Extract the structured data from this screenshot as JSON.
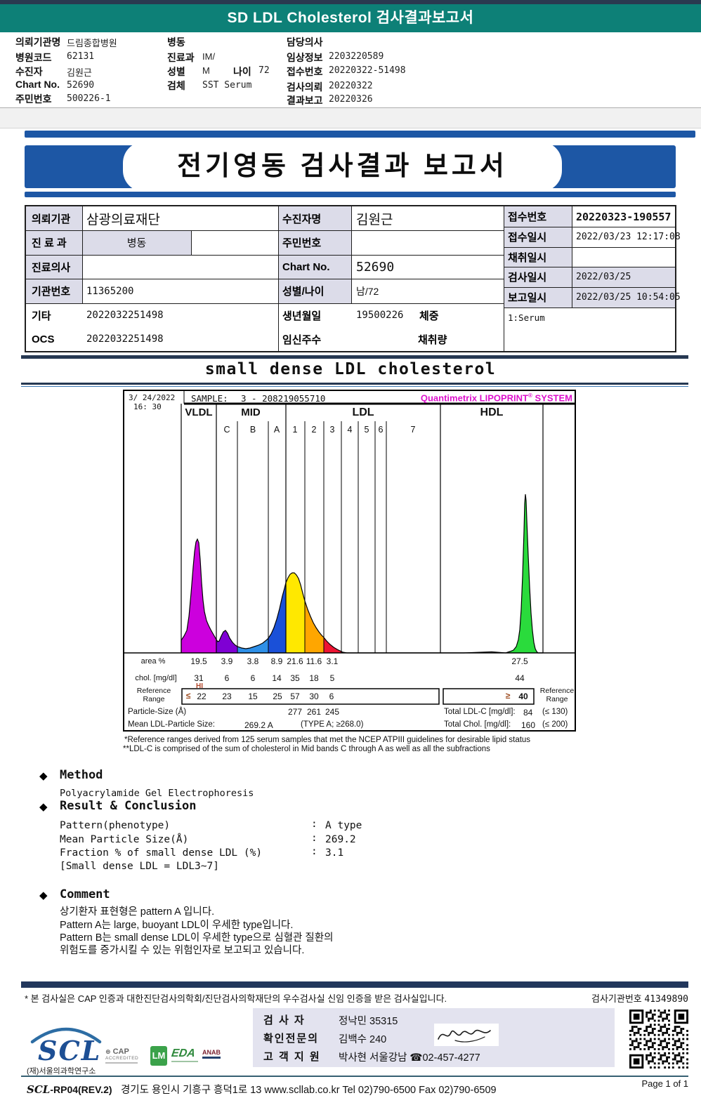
{
  "page": {
    "header_title": "SD LDL Cholesterol 검사결과보고서",
    "report_title": "전기영동 검사결과 보고서",
    "section_title": "small dense LDL cholesterol",
    "page_number": "Page 1 of 1"
  },
  "patient_info": {
    "col1": [
      {
        "label": "의뢰기관명",
        "value": "드림종합병원"
      },
      {
        "label": "병원코드",
        "value": "62131"
      },
      {
        "label": "수진자",
        "value": "김원근"
      },
      {
        "label": "Chart No.",
        "value": "52690"
      },
      {
        "label": "주민번호",
        "value": "500226-1"
      }
    ],
    "col2": [
      {
        "label": "병동",
        "value": ""
      },
      {
        "label": "진료과",
        "value": "IM/"
      },
      {
        "label": "성별",
        "value": "M"
      },
      {
        "label": "나이",
        "value": "72"
      },
      {
        "label": "검체",
        "value": "SST Serum"
      }
    ],
    "col3": [
      {
        "label": "담당의사",
        "value": ""
      },
      {
        "label": "임상정보",
        "value": "2203220589"
      },
      {
        "label": "접수번호",
        "value": "20220322-51498"
      },
      {
        "label": "검사의뢰",
        "value": "20220322"
      },
      {
        "label": "결과보고",
        "value": "20220326"
      }
    ]
  },
  "info_table": {
    "left": [
      {
        "label": "의뢰기관",
        "value": "삼광의료재단"
      },
      {
        "label": "진 료 과",
        "value": "병동"
      },
      {
        "label": "진료의사",
        "value": ""
      },
      {
        "label": "기관번호",
        "value": "11365200"
      },
      {
        "label": "기타",
        "value": "2022032251498"
      },
      {
        "label": "OCS",
        "value": "2022032251498"
      }
    ],
    "middle": [
      {
        "label": "수진자명",
        "value": "김원근"
      },
      {
        "label": "주민번호",
        "value": ""
      },
      {
        "label": "Chart No.",
        "value": "52690"
      },
      {
        "label": "성별/나이",
        "value": "남/72"
      },
      {
        "label": "생년월일",
        "value": "19500226",
        "extra_label": "체중"
      },
      {
        "label": "임신주수",
        "value": "",
        "extra_label": "채취량"
      }
    ],
    "right": [
      {
        "label": "접수번호",
        "value": "20220323-190557"
      },
      {
        "label": "접수일시",
        "value": "2022/03/23 12:17:08"
      },
      {
        "label": "채취일시",
        "value": ""
      },
      {
        "label": "검사일시",
        "value": "2022/03/25"
      },
      {
        "label": "보고일시",
        "value": "2022/03/25 10:54:05"
      }
    ],
    "serum_note": "1:Serum"
  },
  "chart_data": {
    "type": "area",
    "title": "small dense LDL cholesterol",
    "datetime_line1": "3/ 24/2022",
    "datetime_line2": "16: 30",
    "sample_label": "SAMPLE:",
    "sample_id": "3 - 208219055710",
    "brand1": "Quantimetrix LIPOPRINT",
    "brand_reg": "®",
    "brand2": "SYSTEM",
    "groups": [
      "VLDL",
      "MID",
      "LDL",
      "HDL"
    ],
    "bands": [
      {
        "name": "VLDL",
        "area": "19.5",
        "chol": "31",
        "ref": "22"
      },
      {
        "name": "C",
        "area": "3.9",
        "chol": "6",
        "ref": "23"
      },
      {
        "name": "B",
        "area": "3.8",
        "chol": "6",
        "ref": "15"
      },
      {
        "name": "A",
        "area": "8.9",
        "chol": "14",
        "ref": "25"
      },
      {
        "name": "1",
        "area": "21.6",
        "chol": "35",
        "ref": "57"
      },
      {
        "name": "2",
        "area": "11.6",
        "chol": "18",
        "ref": "30"
      },
      {
        "name": "3",
        "area": "3.1",
        "chol": "5",
        "ref": "6"
      },
      {
        "name": "4"
      },
      {
        "name": "5"
      },
      {
        "name": "6"
      },
      {
        "name": "7"
      },
      {
        "name": "HDL",
        "area": "27.5",
        "chol": "44",
        "ref": "40"
      }
    ],
    "hi_flag": "HI",
    "le_symbol": "≤",
    "ge_symbol": "≥",
    "row_labels": {
      "area": "area %",
      "chol": "chol. [mg/dl]",
      "ref1": "Reference",
      "ref2": "Range",
      "particle": "Particle-Size (Å)",
      "mean": "Mean LDL-Particle Size:"
    },
    "particle_sizes": [
      "277",
      "261",
      "245"
    ],
    "mean_size_value": "269.2 A",
    "mean_size_note": "(TYPE A; ≥268.0)",
    "total_ldl": {
      "label": "Total LDL-C [mg/dl]:",
      "value": "84",
      "ref": "(≤ 130)"
    },
    "total_chol": {
      "label": "Total Chol. [mg/dl]:",
      "value": "160",
      "ref": "(≤ 200)"
    },
    "footnote1": "*Reference ranges derived from 125 serum samples that met the NCEP ATPIII guidelines for desirable lipid status",
    "footnote2": "**LDL-C is comprised of the sum of cholesterol in Mid bands C through A as well as all the subfractions",
    "colors": {
      "vldl": "#cc00dd",
      "mid_c": "#7f00d4",
      "mid_b": "#2e90e8",
      "mid_a": "#1a50d8",
      "ldl1": "#ffe800",
      "ldl2": "#ffa600",
      "ldl3": "#ee1433",
      "hdl": "#2adb3c"
    }
  },
  "method": {
    "heading": "Method",
    "body": "Polyacrylamide Gel Electrophoresis"
  },
  "result": {
    "heading": "Result & Conclusion",
    "rows": [
      {
        "label": "Pattern(phenotype)",
        "colon": ":",
        "value": "A type"
      },
      {
        "label": "Mean Particle Size(Å)",
        "colon": ":",
        "value": "269.2"
      },
      {
        "label": "Fraction % of small dense LDL (%)",
        "colon": ":",
        "value": "3.1"
      }
    ],
    "note": "[Small dense LDL = LDL3~7]"
  },
  "comment": {
    "heading": "Comment",
    "lines": [
      "상기환자 표현형은 pattern A 입니다.",
      "Pattern A는 large, buoyant LDL이 우세한 type입니다.",
      "Pattern B는 small dense LDL이 우세한 type으로 심혈관 질환의",
      "위험도를 증가시킬 수 있는 위험인자로 보고되고 있습니다."
    ]
  },
  "footer": {
    "accreditation_note": "* 본 검사실은 CAP 인증과 대한진단검사의학회/진단검사의학재단의 우수검사실 신임 인증을 받은 검사실입니다.",
    "lab_number_label": "검사기관번호",
    "lab_number": "41349890",
    "staff": [
      {
        "label": "검  사  자",
        "value": "정낙민 35315"
      },
      {
        "label": "확인전문의",
        "value": "김백수 240"
      },
      {
        "label": "고 객 지 원",
        "value": "박사현 서울강남 ☎02-457-4277"
      }
    ],
    "org_logo": "SCL",
    "org_name": "(재)서울의과학연구소",
    "cert_logos": [
      {
        "text": "CAP",
        "sub": "ACCREDITED"
      },
      {
        "text": "LM"
      },
      {
        "text": "EDA"
      },
      {
        "text": "ANAB"
      }
    ],
    "doc_code_prefix": "SCL",
    "doc_code_rest": "-RP04(REV.2)",
    "address": "경기도 용인시 기흥구 흥덕1로 13   www.scllab.co.kr   Tel 02)790-6500   Fax 02)790-6509"
  }
}
